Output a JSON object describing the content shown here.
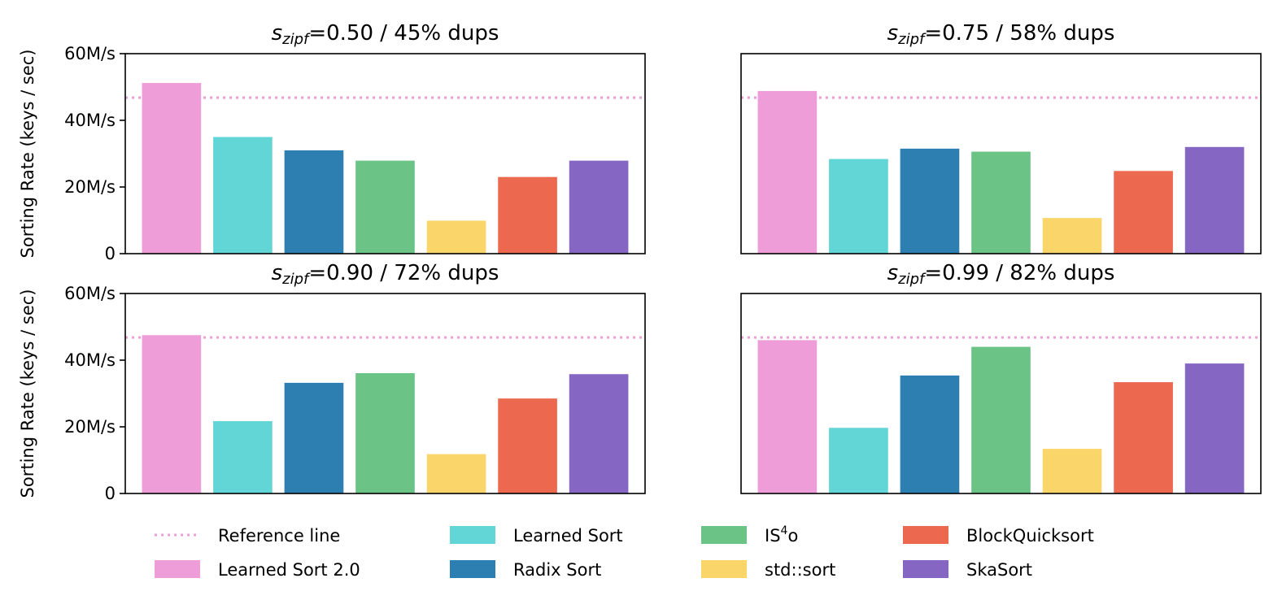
{
  "chart_data": {
    "type": "bar",
    "ylabel": "Sorting Rate (keys / sec)",
    "ylim": [
      0,
      60
    ],
    "yticks": [
      {
        "value": 0,
        "label": "0"
      },
      {
        "value": 20,
        "label": "20M/s"
      },
      {
        "value": 40,
        "label": "40M/s"
      },
      {
        "value": 60,
        "label": "60M/s"
      }
    ],
    "categories": [
      "Learned Sort 2.0",
      "Learned Sort",
      "Radix Sort",
      "IS⁴o",
      "std::sort",
      "BlockQuicksort",
      "SkaSort"
    ],
    "colors": [
      "#ef9dd9",
      "#62d5d6",
      "#2c7fb0",
      "#6bc386",
      "#fad66a",
      "#ec6950",
      "#8666c3"
    ],
    "reference": {
      "label": "Reference line",
      "value": 46.8,
      "color": "#ef9dd9"
    },
    "legend": {
      "placement": "bottom",
      "columns": 4
    },
    "panels": [
      {
        "title_sub": "zipf",
        "title_value": "=0.50 / 45% dups",
        "values": [
          51.2,
          35.0,
          31.0,
          27.9,
          9.9,
          23.0,
          27.9
        ]
      },
      {
        "title_sub": "zipf",
        "title_value": "=0.75 / 58% dups",
        "values": [
          48.8,
          28.4,
          31.5,
          30.6,
          10.7,
          24.8,
          32.0
        ]
      },
      {
        "title_sub": "zipf",
        "title_value": "=0.90 / 72% dups",
        "values": [
          47.5,
          21.7,
          33.2,
          36.1,
          11.8,
          28.5,
          35.8
        ]
      },
      {
        "title_sub": "zipf",
        "title_value": "=0.99 / 82% dups",
        "values": [
          46.0,
          19.7,
          35.4,
          44.0,
          13.4,
          33.4,
          39.0
        ]
      }
    ]
  }
}
